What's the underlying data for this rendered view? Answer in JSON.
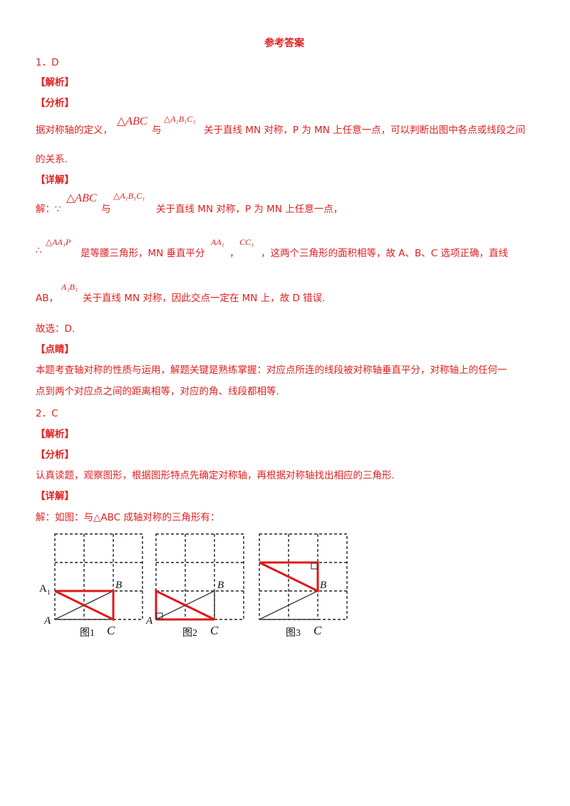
{
  "doc": {
    "title": "参考答案",
    "q1": {
      "num": "1．D",
      "jiexi": "【解析】",
      "fenxi": "【分析】",
      "fenxi_a": "据对称轴的定义，",
      "fenxi_m1": "△ABC",
      "fenxi_b": "与",
      "fenxi_m2": "△A₁B₁C₁",
      "fenxi_c": "关于直线 MN 对称，P 为 MN 上任意一点，可以判断出图中各点或线段之间",
      "fenxi_d": "的关系.",
      "xiangjie": "【详解】",
      "x1_a": "解：∵",
      "x1_m1": "△ABC",
      "x1_b": "与",
      "x1_m2": "△A₁B₁C₁",
      "x1_c": "关于直线 MN 对称，P 为 MN 上任意一点，",
      "x2_a": "∴",
      "x2_m1": "△AA₁P",
      "x2_b": "是等腰三角形，MN 垂直平分",
      "x2_m2": "AA₁",
      "x2_comma": "，",
      "x2_m3": "CC₁",
      "x2_c": "，这两个三角形的面积相等，故 A、B、C 选项正确，直线",
      "x3_a": "AB，",
      "x3_m1": "A₁B₁",
      "x3_b": "关于直线 MN 对称，因此交点一定在 MN 上，故 D 错误.",
      "x4": "故选：D.",
      "dianjing": "【点睛】",
      "d1": "本题考查轴对称的性质与运用，解题关键是熟练掌握：对应点所连的线段被对称轴垂直平分，对称轴上的任何一",
      "d2": "点到两个对应点之间的距离相等，对应的角、线段都相等."
    },
    "q2": {
      "num": "2．C",
      "jiexi": "【解析】",
      "fenxi": "【分析】",
      "f1": "认真读题，观察图形，根据图形特点先确定对称轴，再根据对称轴找出相应的三角形.",
      "xiangjie": "【详解】",
      "x1": "解：如图：与△ABC 成轴对称的三角形有："
    },
    "figures": {
      "fig1": {
        "caption": "图1",
        "A": "A",
        "A1": "A",
        "A1sub": "1",
        "B": "B",
        "C": "C"
      },
      "fig2": {
        "caption": "图2",
        "A": "A",
        "B": "B",
        "C": "C"
      },
      "fig3": {
        "caption": "图3",
        "B": "B",
        "C": "C"
      }
    },
    "colors": {
      "text": "#e02020",
      "red_line": "#e01818",
      "grid": "#222222"
    }
  }
}
